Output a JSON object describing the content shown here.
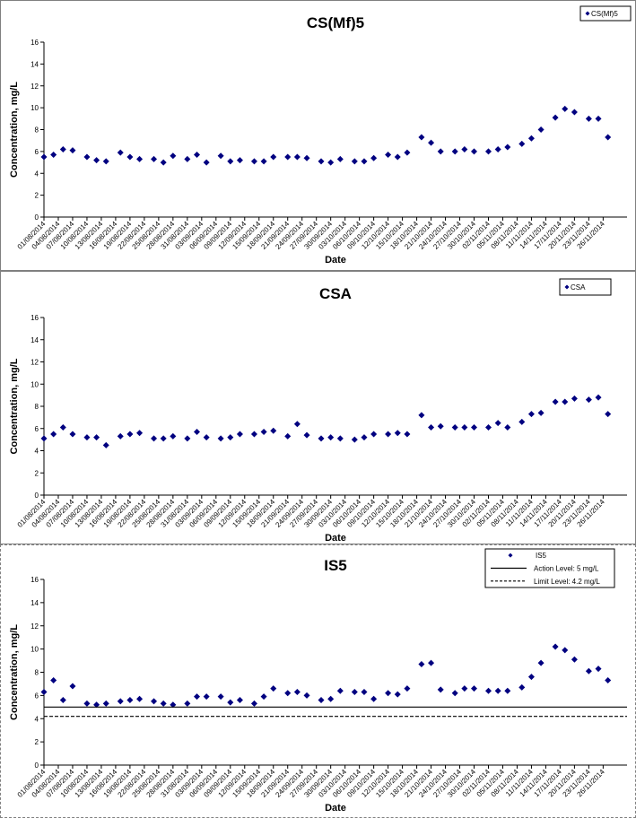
{
  "chart_data": [
    {
      "type": "scatter",
      "title": "CS(Mf)5",
      "xlabel": "Date",
      "ylabel": "Concentration, mg/L",
      "ylim": [
        0,
        16
      ],
      "yticks": [
        0,
        2,
        4,
        6,
        8,
        10,
        12,
        14,
        16
      ],
      "xlim": [
        "01/08/2014",
        "01/12/2014"
      ],
      "xticks": [
        "01/08/2014",
        "04/08/2014",
        "07/08/2014",
        "10/08/2014",
        "13/08/2014",
        "16/08/2014",
        "19/08/2014",
        "22/08/2014",
        "25/08/2014",
        "28/08/2014",
        "31/08/2014",
        "03/09/2014",
        "06/09/2014",
        "09/09/2014",
        "12/09/2014",
        "15/09/2014",
        "18/09/2014",
        "21/09/2014",
        "24/09/2014",
        "27/09/2014",
        "30/09/2014",
        "03/10/2014",
        "06/10/2014",
        "09/10/2014",
        "12/10/2014",
        "15/10/2014",
        "18/10/2014",
        "21/10/2014",
        "24/10/2014",
        "27/10/2014",
        "30/10/2014",
        "02/11/2014",
        "05/11/2014",
        "08/11/2014",
        "11/11/2014",
        "14/11/2014",
        "17/11/2014",
        "20/11/2014",
        "23/11/2014",
        "26/11/2014"
      ],
      "grid": false,
      "legend_position": "top-right",
      "series": [
        {
          "name": "CS(Mf)5",
          "marker": "diamond",
          "color": "#000080",
          "points": [
            [
              "01/08/2014",
              5.5
            ],
            [
              "03/08/2014",
              5.7
            ],
            [
              "05/08/2014",
              6.2
            ],
            [
              "07/08/2014",
              6.1
            ],
            [
              "10/08/2014",
              5.5
            ],
            [
              "12/08/2014",
              5.2
            ],
            [
              "14/08/2014",
              5.1
            ],
            [
              "17/08/2014",
              5.9
            ],
            [
              "19/08/2014",
              5.5
            ],
            [
              "21/08/2014",
              5.3
            ],
            [
              "24/08/2014",
              5.3
            ],
            [
              "26/08/2014",
              5.0
            ],
            [
              "28/08/2014",
              5.6
            ],
            [
              "31/08/2014",
              5.3
            ],
            [
              "02/09/2014",
              5.7
            ],
            [
              "04/09/2014",
              5.0
            ],
            [
              "07/09/2014",
              5.6
            ],
            [
              "09/09/2014",
              5.1
            ],
            [
              "11/09/2014",
              5.2
            ],
            [
              "14/09/2014",
              5.1
            ],
            [
              "16/09/2014",
              5.1
            ],
            [
              "18/09/2014",
              5.5
            ],
            [
              "21/09/2014",
              5.5
            ],
            [
              "23/09/2014",
              5.5
            ],
            [
              "25/09/2014",
              5.4
            ],
            [
              "28/09/2014",
              5.1
            ],
            [
              "30/09/2014",
              5.0
            ],
            [
              "02/10/2014",
              5.3
            ],
            [
              "05/10/2014",
              5.1
            ],
            [
              "07/10/2014",
              5.1
            ],
            [
              "09/10/2014",
              5.4
            ],
            [
              "12/10/2014",
              5.7
            ],
            [
              "14/10/2014",
              5.5
            ],
            [
              "16/10/2014",
              5.9
            ],
            [
              "19/10/2014",
              7.3
            ],
            [
              "21/10/2014",
              6.8
            ],
            [
              "23/10/2014",
              6.0
            ],
            [
              "26/10/2014",
              6.0
            ],
            [
              "28/10/2014",
              6.2
            ],
            [
              "30/10/2014",
              6.0
            ],
            [
              "02/11/2014",
              6.0
            ],
            [
              "04/11/2014",
              6.2
            ],
            [
              "06/11/2014",
              6.4
            ],
            [
              "09/11/2014",
              6.7
            ],
            [
              "11/11/2014",
              7.2
            ],
            [
              "13/11/2014",
              8.0
            ],
            [
              "16/11/2014",
              9.1
            ],
            [
              "18/11/2014",
              9.9
            ],
            [
              "20/11/2014",
              9.6
            ],
            [
              "23/11/2014",
              9.0
            ],
            [
              "25/11/2014",
              9.0
            ],
            [
              "27/11/2014",
              7.3
            ]
          ]
        }
      ]
    },
    {
      "type": "scatter",
      "title": "CSA",
      "xlabel": "Date",
      "ylabel": "Concentration, mg/L",
      "ylim": [
        0,
        16
      ],
      "yticks": [
        0,
        2,
        4,
        6,
        8,
        10,
        12,
        14,
        16
      ],
      "xlim": [
        "01/08/2014",
        "01/12/2014"
      ],
      "xticks": [
        "01/08/2014",
        "04/08/2014",
        "07/08/2014",
        "10/08/2014",
        "13/08/2014",
        "16/08/2014",
        "19/08/2014",
        "22/08/2014",
        "25/08/2014",
        "28/08/2014",
        "31/08/2014",
        "03/09/2014",
        "06/09/2014",
        "09/09/2014",
        "12/09/2014",
        "15/09/2014",
        "18/09/2014",
        "21/09/2014",
        "24/09/2014",
        "27/09/2014",
        "30/09/2014",
        "03/10/2014",
        "06/10/2014",
        "09/10/2014",
        "12/10/2014",
        "15/10/2014",
        "18/10/2014",
        "21/10/2014",
        "24/10/2014",
        "27/10/2014",
        "30/10/2014",
        "02/11/2014",
        "05/11/2014",
        "08/11/2014",
        "11/11/2014",
        "14/11/2014",
        "17/11/2014",
        "20/11/2014",
        "23/11/2014",
        "26/11/2014"
      ],
      "grid": false,
      "legend_position": "top-right",
      "series": [
        {
          "name": "CSA",
          "marker": "diamond",
          "color": "#000080",
          "points": [
            [
              "01/08/2014",
              5.1
            ],
            [
              "03/08/2014",
              5.5
            ],
            [
              "05/08/2014",
              6.1
            ],
            [
              "07/08/2014",
              5.5
            ],
            [
              "10/08/2014",
              5.2
            ],
            [
              "12/08/2014",
              5.2
            ],
            [
              "14/08/2014",
              4.5
            ],
            [
              "17/08/2014",
              5.3
            ],
            [
              "19/08/2014",
              5.5
            ],
            [
              "21/08/2014",
              5.6
            ],
            [
              "24/08/2014",
              5.1
            ],
            [
              "26/08/2014",
              5.1
            ],
            [
              "28/08/2014",
              5.3
            ],
            [
              "31/08/2014",
              5.1
            ],
            [
              "02/09/2014",
              5.7
            ],
            [
              "04/09/2014",
              5.2
            ],
            [
              "07/09/2014",
              5.1
            ],
            [
              "09/09/2014",
              5.2
            ],
            [
              "11/09/2014",
              5.5
            ],
            [
              "14/09/2014",
              5.5
            ],
            [
              "16/09/2014",
              5.7
            ],
            [
              "18/09/2014",
              5.8
            ],
            [
              "21/09/2014",
              5.3
            ],
            [
              "23/09/2014",
              6.4
            ],
            [
              "25/09/2014",
              5.4
            ],
            [
              "28/09/2014",
              5.1
            ],
            [
              "30/09/2014",
              5.2
            ],
            [
              "02/10/2014",
              5.1
            ],
            [
              "05/10/2014",
              5.0
            ],
            [
              "07/10/2014",
              5.2
            ],
            [
              "09/10/2014",
              5.5
            ],
            [
              "12/10/2014",
              5.5
            ],
            [
              "14/10/2014",
              5.6
            ],
            [
              "16/10/2014",
              5.5
            ],
            [
              "19/10/2014",
              7.2
            ],
            [
              "21/10/2014",
              6.1
            ],
            [
              "23/10/2014",
              6.2
            ],
            [
              "26/10/2014",
              6.1
            ],
            [
              "28/10/2014",
              6.1
            ],
            [
              "30/10/2014",
              6.1
            ],
            [
              "02/11/2014",
              6.1
            ],
            [
              "04/11/2014",
              6.5
            ],
            [
              "06/11/2014",
              6.1
            ],
            [
              "09/11/2014",
              6.6
            ],
            [
              "11/11/2014",
              7.3
            ],
            [
              "13/11/2014",
              7.4
            ],
            [
              "16/11/2014",
              8.4
            ],
            [
              "18/11/2014",
              8.4
            ],
            [
              "20/11/2014",
              8.7
            ],
            [
              "23/11/2014",
              8.6
            ],
            [
              "25/11/2014",
              8.8
            ],
            [
              "27/11/2014",
              7.3
            ]
          ]
        }
      ]
    },
    {
      "type": "scatter",
      "title": "IS5",
      "xlabel": "Date",
      "ylabel": "Concentration, mg/L",
      "ylim": [
        0,
        16
      ],
      "yticks": [
        0,
        2,
        4,
        6,
        8,
        10,
        12,
        14,
        16
      ],
      "xlim": [
        "01/08/2014",
        "01/12/2014"
      ],
      "xticks": [
        "01/08/2014",
        "04/08/2014",
        "07/08/2014",
        "10/08/2014",
        "13/08/2014",
        "16/08/2014",
        "19/08/2014",
        "22/08/2014",
        "25/08/2014",
        "28/08/2014",
        "31/08/2014",
        "03/09/2014",
        "06/09/2014",
        "09/09/2014",
        "12/09/2014",
        "15/09/2014",
        "18/09/2014",
        "21/09/2014",
        "24/09/2014",
        "27/09/2014",
        "30/09/2014",
        "03/10/2014",
        "06/10/2014",
        "09/10/2014",
        "12/10/2014",
        "15/10/2014",
        "18/10/2014",
        "21/10/2014",
        "24/10/2014",
        "27/10/2014",
        "30/10/2014",
        "02/11/2014",
        "05/11/2014",
        "08/11/2014",
        "11/11/2014",
        "14/11/2014",
        "17/11/2014",
        "20/11/2014",
        "23/11/2014",
        "26/11/2014"
      ],
      "grid": false,
      "legend_position": "top-right",
      "series": [
        {
          "name": "IS5",
          "marker": "diamond",
          "color": "#000080",
          "points": [
            [
              "01/08/2014",
              6.3
            ],
            [
              "03/08/2014",
              7.3
            ],
            [
              "05/08/2014",
              5.6
            ],
            [
              "07/08/2014",
              6.8
            ],
            [
              "10/08/2014",
              5.3
            ],
            [
              "12/08/2014",
              5.2
            ],
            [
              "14/08/2014",
              5.3
            ],
            [
              "17/08/2014",
              5.5
            ],
            [
              "19/08/2014",
              5.6
            ],
            [
              "21/08/2014",
              5.7
            ],
            [
              "24/08/2014",
              5.5
            ],
            [
              "26/08/2014",
              5.3
            ],
            [
              "28/08/2014",
              5.2
            ],
            [
              "31/08/2014",
              5.3
            ],
            [
              "02/09/2014",
              5.9
            ],
            [
              "04/09/2014",
              5.9
            ],
            [
              "07/09/2014",
              5.9
            ],
            [
              "09/09/2014",
              5.4
            ],
            [
              "11/09/2014",
              5.6
            ],
            [
              "14/09/2014",
              5.3
            ],
            [
              "16/09/2014",
              5.9
            ],
            [
              "18/09/2014",
              6.6
            ],
            [
              "21/09/2014",
              6.2
            ],
            [
              "23/09/2014",
              6.3
            ],
            [
              "25/09/2014",
              6.0
            ],
            [
              "28/09/2014",
              5.6
            ],
            [
              "30/09/2014",
              5.7
            ],
            [
              "02/10/2014",
              6.4
            ],
            [
              "05/10/2014",
              6.3
            ],
            [
              "07/10/2014",
              6.3
            ],
            [
              "09/10/2014",
              5.7
            ],
            [
              "12/10/2014",
              6.2
            ],
            [
              "14/10/2014",
              6.1
            ],
            [
              "16/10/2014",
              6.6
            ],
            [
              "19/10/2014",
              8.7
            ],
            [
              "21/10/2014",
              8.8
            ],
            [
              "23/10/2014",
              6.5
            ],
            [
              "26/10/2014",
              6.2
            ],
            [
              "28/10/2014",
              6.6
            ],
            [
              "30/10/2014",
              6.6
            ],
            [
              "02/11/2014",
              6.4
            ],
            [
              "04/11/2014",
              6.4
            ],
            [
              "06/11/2014",
              6.4
            ],
            [
              "09/11/2014",
              6.7
            ],
            [
              "11/11/2014",
              7.6
            ],
            [
              "13/11/2014",
              8.8
            ],
            [
              "16/11/2014",
              10.2
            ],
            [
              "18/11/2014",
              9.9
            ],
            [
              "20/11/2014",
              9.1
            ],
            [
              "23/11/2014",
              8.1
            ],
            [
              "25/11/2014",
              8.3
            ],
            [
              "27/11/2014",
              7.3
            ]
          ]
        },
        {
          "name": "Action Level: 5 mg/L",
          "style": "solid-line",
          "color": "#000000",
          "value": 5
        },
        {
          "name": "Limit Level: 4.2 mg/L",
          "style": "dashed-line",
          "color": "#000000",
          "value": 4.2
        }
      ]
    }
  ]
}
